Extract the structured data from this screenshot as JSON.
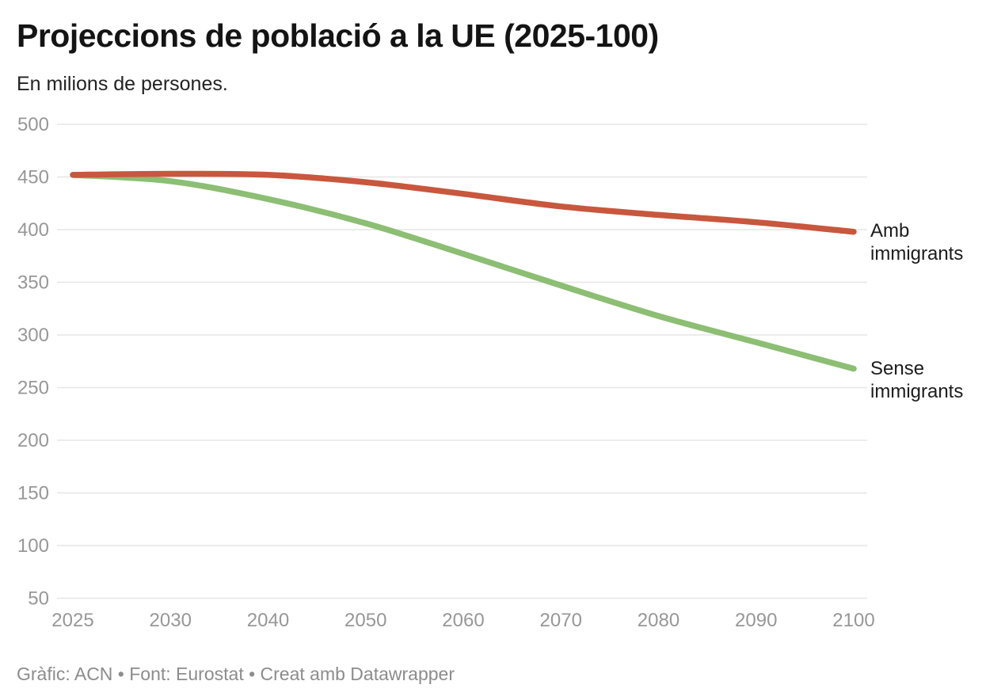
{
  "header": {
    "title": "Projeccions de població a la UE (2025-100)",
    "subtitle": "En milions de persones."
  },
  "footer": {
    "credit": "Gràfic: ACN • Font: Eurostat • Creat amb Datawrapper"
  },
  "chart_data": {
    "type": "line",
    "title": "Projeccions de població a la UE (2025-100)",
    "subtitle": "En milions de persones.",
    "xlabel": "",
    "ylabel": "",
    "categories": [
      "2025",
      "2030",
      "2040",
      "2050",
      "2060",
      "2070",
      "2080",
      "2090",
      "2100"
    ],
    "series": [
      {
        "id": "sense-immigrants",
        "name": "Sense immigrants",
        "label": "Sense immigrants",
        "color": "#8cbe73",
        "values": [
          452,
          446,
          429,
          406,
          377,
          347,
          318,
          293,
          268
        ]
      },
      {
        "id": "amb-immigrants",
        "name": "Amb immigrants",
        "label": "Amb immigrants",
        "color": "#c8573e",
        "values": [
          452,
          453,
          452,
          445,
          434,
          422,
          414,
          407,
          398
        ]
      }
    ],
    "y_ticks": [
      500,
      450,
      400,
      350,
      300,
      250,
      200,
      150,
      100,
      50
    ],
    "ylim": [
      50,
      500
    ],
    "grid": "horizontal",
    "gridline_color": "#e6e6e6",
    "tick_label_color": "#979797",
    "legend_position": "direct-labels-right"
  },
  "labels": {
    "amb": "Amb immigrants",
    "sense": "Sense immigrants"
  }
}
